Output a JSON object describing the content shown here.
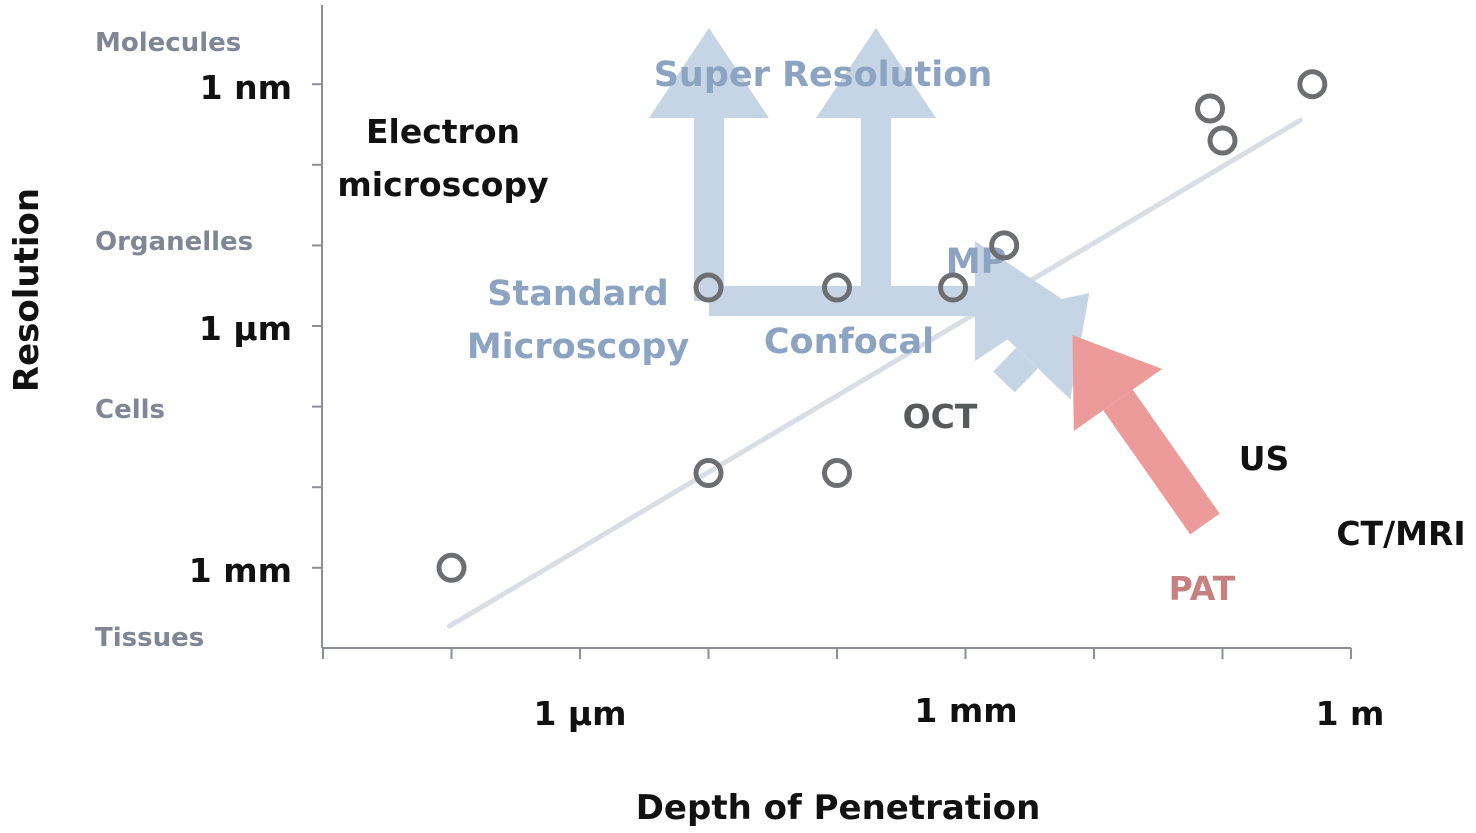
{
  "chart_data": {
    "type": "scatter",
    "title": "",
    "xlabel": "Depth of Penetration",
    "ylabel": "Resolution",
    "x_scale": "log",
    "y_scale": "log",
    "x_tick_labels": [
      "1 µm",
      "1 mm",
      "1 m"
    ],
    "y_tick_labels": [
      "1 nm",
      "1 µm",
      "1 mm"
    ],
    "y_category_labels": [
      "Molecules",
      "Organelles",
      "Cells",
      "Tissues"
    ],
    "grid": false,
    "legend": "none",
    "points": [
      {
        "label": "Electron microscopy",
        "lines": [
          "Electron",
          "microscopy"
        ],
        "depth_m": 1e-07,
        "resolution_m": 1e-09,
        "color": "#111111"
      },
      {
        "label": "Standard Microscopy",
        "lines": [
          "Standard",
          "Microscopy"
        ],
        "depth_m": 1e-05,
        "resolution_m": 3e-06,
        "color": "#8ca3c1"
      },
      {
        "label": "Confocal",
        "lines": [
          "Confocal"
        ],
        "depth_m": 0.0001,
        "resolution_m": 3e-06,
        "color": "#8ca3c1"
      },
      {
        "label": "MP",
        "lines": [
          "MP"
        ],
        "depth_m": 0.0008,
        "resolution_m": 3e-06,
        "color": "#8ca3c1"
      },
      {
        "label": "OCT",
        "lines": [
          "OCT"
        ],
        "depth_m": 0.002,
        "resolution_m": 1e-05,
        "color": "#58595b"
      },
      {
        "label": "US",
        "lines": [
          "US"
        ],
        "depth_m": 0.1,
        "resolution_m": 0.0002,
        "color": "#111111"
      },
      {
        "label": "PAT",
        "lines": [
          "PAT"
        ],
        "depth_m": 0.08,
        "resolution_m": 0.0005,
        "color": "#c87f7f"
      },
      {
        "label": "CT/MRI",
        "lines": [
          "CT/MRI"
        ],
        "depth_m": 0.5,
        "resolution_m": 0.001,
        "color": "#111111"
      }
    ],
    "super_resolution_points": [
      {
        "depth_m": 1e-05,
        "resolution_m": 1.5e-08
      },
      {
        "depth_m": 0.0001,
        "resolution_m": 1.5e-08
      }
    ],
    "annotations": [
      "Super Resolution"
    ],
    "trend_line": {
      "from": {
        "depth_m": 1e-07,
        "resolution_m": 2e-10
      },
      "to": {
        "depth_m": 0.5,
        "resolution_m": 0.0004
      }
    },
    "colors": {
      "blue_arrow": "#c6d5e6",
      "red_arrow": "#ec9a9a",
      "trend": "#d9dde4",
      "marker": "#6d6e72",
      "axis": "#8c8f96"
    }
  }
}
